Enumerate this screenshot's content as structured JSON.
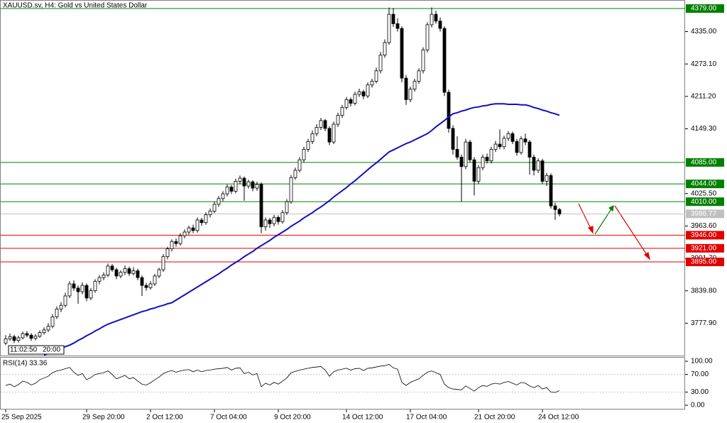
{
  "chart_data": {
    "type": "candlestick",
    "title": "XAUUSD.sv, H4:  Gold vs United States Dollar",
    "categories": [
      "25 Sep 2025",
      null,
      null,
      null,
      null,
      null,
      null,
      null,
      null,
      null,
      null,
      null,
      null,
      null,
      null,
      null,
      null,
      null,
      null,
      "29 Sep 20:00",
      null,
      null,
      null,
      null,
      null,
      null,
      null,
      null,
      null,
      null,
      null,
      null,
      null,
      null,
      "2 Oct 12:00",
      null,
      null,
      null,
      null,
      null,
      null,
      null,
      null,
      null,
      null,
      null,
      null,
      null,
      null,
      "7 Oct 04:00",
      null,
      null,
      null,
      null,
      null,
      null,
      null,
      null,
      null,
      null,
      null,
      null,
      null,
      null,
      "9 Oct 20:00",
      null,
      null,
      null,
      null,
      null,
      null,
      null,
      null,
      null,
      null,
      null,
      null,
      null,
      null,
      null,
      "14 Oct 12:00",
      null,
      null,
      null,
      null,
      null,
      null,
      null,
      null,
      null,
      null,
      null,
      null,
      null,
      null,
      "17 Oct 04:00",
      null,
      null,
      null,
      null,
      null,
      null,
      null,
      null,
      null,
      null,
      null,
      null,
      null,
      null,
      null,
      "21 Oct 20:00",
      null,
      null,
      null,
      null,
      null,
      null,
      null,
      null,
      null,
      null,
      null,
      null,
      null,
      null,
      "24 Oct 12:00",
      null,
      null,
      null,
      null
    ],
    "ohlc": [
      [
        3740,
        3755,
        3736,
        3748
      ],
      [
        3748,
        3758,
        3744,
        3752
      ],
      [
        3752,
        3756,
        3740,
        3745
      ],
      [
        3745,
        3754,
        3741,
        3750
      ],
      [
        3750,
        3762,
        3747,
        3758
      ],
      [
        3758,
        3763,
        3751,
        3755
      ],
      [
        3755,
        3759,
        3744,
        3749
      ],
      [
        3749,
        3757,
        3745,
        3753
      ],
      [
        3753,
        3764,
        3750,
        3760
      ],
      [
        3760,
        3770,
        3756,
        3765
      ],
      [
        3765,
        3778,
        3761,
        3772
      ],
      [
        3772,
        3795,
        3768,
        3790
      ],
      [
        3790,
        3810,
        3786,
        3805
      ],
      [
        3805,
        3818,
        3799,
        3812
      ],
      [
        3812,
        3836,
        3808,
        3830
      ],
      [
        3830,
        3858,
        3826,
        3853
      ],
      [
        3853,
        3860,
        3840,
        3845
      ],
      [
        3845,
        3850,
        3815,
        3838
      ],
      [
        3838,
        3856,
        3833,
        3850
      ],
      [
        3850,
        3854,
        3820,
        3826
      ],
      [
        3826,
        3845,
        3822,
        3840
      ],
      [
        3840,
        3862,
        3836,
        3858
      ],
      [
        3858,
        3870,
        3852,
        3865
      ],
      [
        3865,
        3875,
        3860,
        3870
      ],
      [
        3870,
        3892,
        3866,
        3887
      ],
      [
        3887,
        3891,
        3876,
        3880
      ],
      [
        3880,
        3884,
        3862,
        3868
      ],
      [
        3868,
        3879,
        3864,
        3875
      ],
      [
        3875,
        3888,
        3870,
        3882
      ],
      [
        3882,
        3886,
        3868,
        3873
      ],
      [
        3873,
        3885,
        3869,
        3878
      ],
      [
        3878,
        3882,
        3860,
        3865
      ],
      [
        3865,
        3869,
        3830,
        3850
      ],
      [
        3850,
        3855,
        3840,
        3846
      ],
      [
        3846,
        3858,
        3842,
        3853
      ],
      [
        3853,
        3872,
        3849,
        3868
      ],
      [
        3868,
        3884,
        3864,
        3880
      ],
      [
        3880,
        3910,
        3876,
        3905
      ],
      [
        3905,
        3924,
        3900,
        3920
      ],
      [
        3920,
        3938,
        3915,
        3934
      ],
      [
        3934,
        3940,
        3924,
        3930
      ],
      [
        3930,
        3950,
        3926,
        3945
      ],
      [
        3945,
        3957,
        3940,
        3952
      ],
      [
        3952,
        3964,
        3947,
        3960
      ],
      [
        3960,
        3966,
        3950,
        3955
      ],
      [
        3955,
        3980,
        3951,
        3975
      ],
      [
        3975,
        3979,
        3964,
        3970
      ],
      [
        3970,
        3990,
        3966,
        3985
      ],
      [
        3985,
        3997,
        3980,
        3992
      ],
      [
        3992,
        4010,
        3988,
        4005
      ],
      [
        4005,
        4021,
        4000,
        4016
      ],
      [
        4016,
        4030,
        4011,
        4025
      ],
      [
        4025,
        4043,
        4020,
        4038
      ],
      [
        4038,
        4042,
        4025,
        4030
      ],
      [
        4030,
        4054,
        4026,
        4049
      ],
      [
        4049,
        4060,
        4044,
        4055
      ],
      [
        4055,
        4058,
        4012,
        4040
      ],
      [
        4040,
        4052,
        4035,
        4048
      ],
      [
        4048,
        4051,
        4030,
        4036
      ],
      [
        4036,
        4048,
        4031,
        4043
      ],
      [
        4043,
        4047,
        3950,
        3962
      ],
      [
        3962,
        3980,
        3955,
        3975
      ],
      [
        3975,
        3979,
        3960,
        3968
      ],
      [
        3968,
        3985,
        3963,
        3980
      ],
      [
        3980,
        3984,
        3966,
        3972
      ],
      [
        3972,
        3994,
        3968,
        3989
      ],
      [
        3989,
        4015,
        3985,
        4010
      ],
      [
        4010,
        4061,
        4006,
        4056
      ],
      [
        4056,
        4075,
        4052,
        4070
      ],
      [
        4070,
        4095,
        4066,
        4090
      ],
      [
        4090,
        4115,
        4085,
        4110
      ],
      [
        4110,
        4130,
        4105,
        4125
      ],
      [
        4125,
        4146,
        4120,
        4140
      ],
      [
        4140,
        4158,
        4135,
        4152
      ],
      [
        4152,
        4170,
        4147,
        4165
      ],
      [
        4165,
        4168,
        4145,
        4150
      ],
      [
        4150,
        4154,
        4118,
        4124
      ],
      [
        4124,
        4163,
        4120,
        4158
      ],
      [
        4158,
        4180,
        4153,
        4175
      ],
      [
        4175,
        4195,
        4170,
        4190
      ],
      [
        4190,
        4210,
        4186,
        4205
      ],
      [
        4205,
        4209,
        4192,
        4198
      ],
      [
        4198,
        4220,
        4194,
        4215
      ],
      [
        4215,
        4226,
        4210,
        4220
      ],
      [
        4220,
        4224,
        4206,
        4212
      ],
      [
        4212,
        4238,
        4208,
        4233
      ],
      [
        4233,
        4245,
        4228,
        4240
      ],
      [
        4240,
        4266,
        4236,
        4260
      ],
      [
        4260,
        4296,
        4255,
        4290
      ],
      [
        4290,
        4320,
        4285,
        4314
      ],
      [
        4314,
        4381,
        4310,
        4368
      ],
      [
        4368,
        4380,
        4344,
        4350
      ],
      [
        4350,
        4360,
        4335,
        4341
      ],
      [
        4341,
        4345,
        4238,
        4246
      ],
      [
        4246,
        4252,
        4195,
        4205
      ],
      [
        4205,
        4230,
        4200,
        4225
      ],
      [
        4225,
        4245,
        4220,
        4240
      ],
      [
        4240,
        4265,
        4235,
        4260
      ],
      [
        4260,
        4305,
        4255,
        4300
      ],
      [
        4300,
        4353,
        4295,
        4348
      ],
      [
        4348,
        4381,
        4343,
        4368
      ],
      [
        4368,
        4375,
        4350,
        4355
      ],
      [
        4355,
        4362,
        4335,
        4341
      ],
      [
        4341,
        4345,
        4212,
        4219
      ],
      [
        4219,
        4224,
        4142,
        4150
      ],
      [
        4150,
        4156,
        4100,
        4110
      ],
      [
        4110,
        4135,
        4090,
        4095
      ],
      [
        4095,
        4100,
        4010,
        4077
      ],
      [
        4077,
        4130,
        4072,
        4124
      ],
      [
        4124,
        4128,
        4085,
        4090
      ],
      [
        4090,
        4095,
        4022,
        4049
      ],
      [
        4049,
        4080,
        4044,
        4075
      ],
      [
        4075,
        4100,
        4070,
        4095
      ],
      [
        4095,
        4102,
        4083,
        4088
      ],
      [
        4088,
        4115,
        4083,
        4110
      ],
      [
        4110,
        4126,
        4105,
        4120
      ],
      [
        4120,
        4148,
        4110,
        4115
      ],
      [
        4115,
        4136,
        4110,
        4131
      ],
      [
        4131,
        4145,
        4126,
        4140
      ],
      [
        4140,
        4144,
        4120,
        4125
      ],
      [
        4125,
        4130,
        4098,
        4104
      ],
      [
        4104,
        4135,
        4100,
        4130
      ],
      [
        4130,
        4140,
        4118,
        4124
      ],
      [
        4124,
        4128,
        4062,
        4095
      ],
      [
        4095,
        4100,
        4060,
        4070
      ],
      [
        4070,
        4093,
        4065,
        4088
      ],
      [
        4088,
        4092,
        4044,
        4049
      ],
      [
        4049,
        4065,
        4040,
        4060
      ],
      [
        4060,
        4064,
        3997,
        4002
      ],
      [
        4002,
        4008,
        3975,
        3995
      ],
      [
        3995,
        3998,
        3982,
        3986.77
      ]
    ],
    "up_color": "#ffffff",
    "down_color": "#000000",
    "candle_outline": "#000000",
    "ma": {
      "color": "#1010c0",
      "values": [
        null,
        null,
        null,
        null,
        null,
        null,
        null,
        null,
        null,
        3717,
        3720,
        3723,
        3727,
        3730,
        3733,
        3736,
        3740,
        3745,
        3749,
        3754,
        3758,
        3763,
        3767,
        3772,
        3776,
        3779,
        3782,
        3785,
        3788,
        3791,
        3794,
        3797,
        3800,
        3802,
        3805,
        3807,
        3810,
        3812,
        3815,
        3817,
        3822,
        3827,
        3832,
        3837,
        3842,
        3847,
        3852,
        3857,
        3862,
        3867,
        3872,
        3878,
        3883,
        3889,
        3894,
        3899,
        3905,
        3910,
        3915,
        3921,
        3926,
        3931,
        3936,
        3942,
        3947,
        3952,
        3957,
        3963,
        3968,
        3973,
        3979,
        3984,
        3989,
        3995,
        4000,
        4006,
        4012,
        4019,
        4025,
        4031,
        4037,
        4044,
        4050,
        4057,
        4064,
        4071,
        4078,
        4084,
        4091,
        4098,
        4105,
        4109,
        4113,
        4117,
        4121,
        4124,
        4128,
        4132,
        4136,
        4140,
        4146,
        4153,
        4159,
        4165,
        4172,
        4178,
        4180,
        4183,
        4185,
        4188,
        4190,
        4191,
        4193,
        4194,
        4196,
        4197,
        4197,
        4197,
        4196,
        4196,
        4196,
        4195,
        4195,
        4193,
        4190,
        4188,
        4185,
        4183,
        4180,
        4178,
        4175
      ]
    },
    "ylim": [
      3717.4,
      4395.3
    ],
    "yticks": [
      {
        "value": 4335,
        "label": "4335.00"
      },
      {
        "value": 4273.1,
        "label": "4273.10"
      },
      {
        "value": 4211.2,
        "label": "4211.20"
      },
      {
        "value": 4149.3,
        "label": "4149.30"
      },
      {
        "value": 4025.5,
        "label": "4025.50"
      },
      {
        "value": 3963.6,
        "label": "3963.60"
      },
      {
        "value": 3901.7,
        "label": "3901.70"
      },
      {
        "value": 3839.8,
        "label": "3839.80"
      },
      {
        "value": 3777.9,
        "label": "3777.90"
      }
    ],
    "levels": [
      {
        "value": 4379,
        "label": "4379.00",
        "color": "#008000"
      },
      {
        "value": 4085,
        "label": "4085.00",
        "color": "#008000"
      },
      {
        "value": 4044,
        "label": "4044.00",
        "color": "#008000"
      },
      {
        "value": 4010,
        "label": "4010.00",
        "color": "#008000"
      },
      {
        "value": 3946,
        "label": "3946.00",
        "color": "#e00000"
      },
      {
        "value": 3921,
        "label": "3921.00",
        "color": "#e00000"
      },
      {
        "value": 3895,
        "label": "3895.00",
        "color": "#e00000"
      }
    ],
    "last_price": {
      "value": 3986.77,
      "label": "3986.77",
      "color": "#c0c0c0"
    },
    "crosshair_labels": [
      "11:02:50",
      "20:00"
    ],
    "rsi": {
      "label": "RSI(14) 33.36",
      "color": "#000000",
      "ylim": [
        0,
        100
      ],
      "yticks": [
        {
          "value": 100,
          "label": "100.00"
        },
        {
          "value": 70,
          "label": "70.00"
        },
        {
          "value": 30,
          "label": "30.00"
        },
        {
          "value": 0,
          "label": "0.00"
        }
      ],
      "values": [
        45,
        48,
        42,
        47,
        55,
        52,
        46,
        50,
        58,
        62,
        66,
        74,
        78,
        80,
        83,
        86,
        75,
        68,
        72,
        58,
        63,
        70,
        72,
        74,
        78,
        70,
        60,
        64,
        68,
        60,
        63,
        55,
        48,
        46,
        51,
        58,
        64,
        72,
        76,
        79,
        75,
        78,
        80,
        81,
        76,
        80,
        76,
        79,
        80,
        82,
        83,
        84,
        86,
        80,
        84,
        85,
        72,
        75,
        69,
        72,
        42,
        50,
        46,
        52,
        48,
        55,
        62,
        74,
        77,
        80,
        82,
        84,
        86,
        87,
        88,
        80,
        66,
        76,
        80,
        82,
        84,
        80,
        83,
        84,
        79,
        84,
        85,
        87,
        89,
        90,
        93,
        85,
        82,
        52,
        45,
        52,
        56,
        60,
        68,
        75,
        78,
        74,
        70,
        48,
        40,
        37,
        36,
        35,
        44,
        38,
        32,
        40,
        45,
        43,
        48,
        50,
        48,
        52,
        54,
        50,
        46,
        52,
        50,
        44,
        40,
        45,
        37,
        40,
        30,
        29,
        33.36
      ]
    }
  }
}
